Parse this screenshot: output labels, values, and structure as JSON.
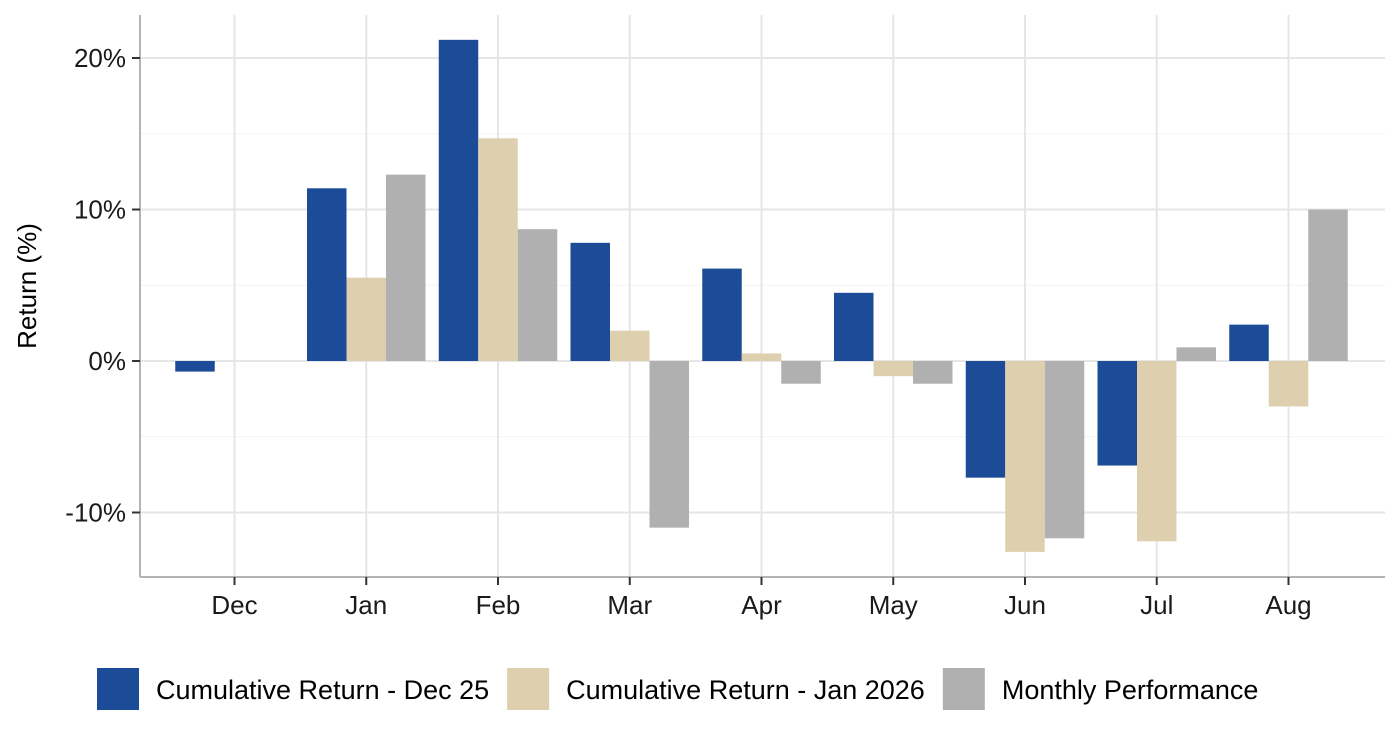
{
  "chart_data": {
    "type": "bar",
    "title": "",
    "xlabel": "",
    "ylabel": "Return (%)",
    "categories": [
      "Dec",
      "Jan",
      "Feb",
      "Mar",
      "Apr",
      "May",
      "Jun",
      "Jul",
      "Aug"
    ],
    "y_ticks": [
      -10,
      0,
      10,
      20
    ],
    "y_tick_labels": [
      "-10%",
      "0%",
      "10%",
      "20%"
    ],
    "ylim": [
      -14,
      23
    ],
    "grid": true,
    "legend_position": "bottom",
    "series": [
      {
        "name": "Cumulative Return - Dec 25",
        "color": "#1c4b98",
        "values": [
          -0.7,
          11.4,
          21.2,
          7.8,
          6.1,
          4.5,
          -7.7,
          -6.9,
          2.4
        ]
      },
      {
        "name": "Cumulative Return - Jan 2026",
        "color": "#ded0ae",
        "values": [
          null,
          5.5,
          14.7,
          2.0,
          0.5,
          -1.0,
          -12.6,
          -11.9,
          -3.0
        ]
      },
      {
        "name": "Monthly Performance",
        "color": "#b0b0b0",
        "values": [
          null,
          12.3,
          8.7,
          -11.0,
          -1.5,
          -1.5,
          -11.7,
          0.9,
          10.0
        ]
      }
    ]
  }
}
